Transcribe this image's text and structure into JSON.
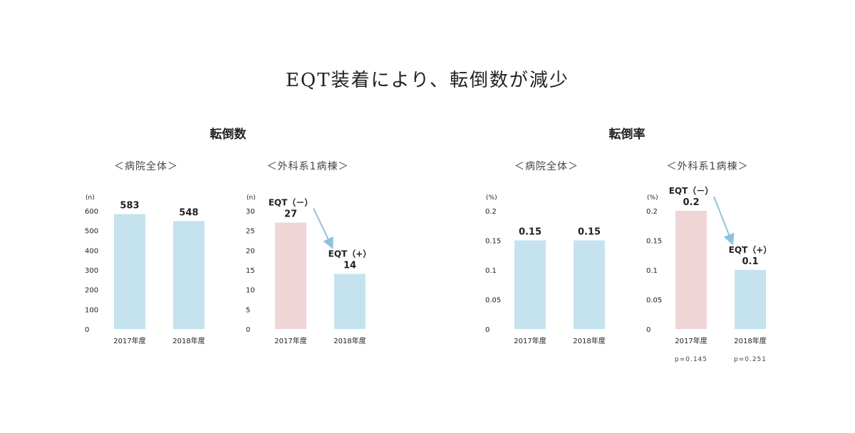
{
  "title": "EQT装着により、転倒数が減少",
  "sections": [
    {
      "title": "転倒数"
    },
    {
      "title": "転倒率"
    }
  ],
  "chart_data": [
    {
      "type": "bar",
      "subtitle": "＜病院全体＞",
      "unit": "(n)",
      "ylim": [
        0,
        600
      ],
      "yticks": [
        "600",
        "500",
        "400",
        "300",
        "200",
        "100",
        "0"
      ],
      "categories": [
        "2017年度",
        "2018年度"
      ],
      "values": [
        583,
        548
      ],
      "value_labels": [
        "583",
        "548"
      ],
      "colors": [
        "#c5e3ee",
        "#c5e3ee"
      ]
    },
    {
      "type": "bar",
      "subtitle": "＜外科系1病棟＞",
      "unit": "(n)",
      "ylim": [
        0,
        30
      ],
      "yticks": [
        "30",
        "25",
        "20",
        "15",
        "10",
        "5",
        "0"
      ],
      "categories": [
        "2017年度",
        "2018年度"
      ],
      "values": [
        27,
        14
      ],
      "value_labels": [
        "27",
        "14"
      ],
      "bar_annotations": [
        "EQT（－）",
        "EQT（+）"
      ],
      "colors": [
        "#f0d5d7",
        "#c5e3ee"
      ],
      "arrow_color": "#8fc3dc"
    },
    {
      "type": "bar",
      "subtitle": "＜病院全体＞",
      "unit": "(%)",
      "ylim": [
        0,
        0.2
      ],
      "yticks": [
        "0.2",
        "0.15",
        "0.1",
        "0.05",
        "0"
      ],
      "categories": [
        "2017年度",
        "2018年度"
      ],
      "values": [
        0.15,
        0.15
      ],
      "value_labels": [
        "0.15",
        "0.15"
      ],
      "colors": [
        "#c5e3ee",
        "#c5e3ee"
      ]
    },
    {
      "type": "bar",
      "subtitle": "＜外科系1病棟＞",
      "unit": "(%)",
      "ylim": [
        0,
        0.2
      ],
      "yticks": [
        "0.2",
        "0.15",
        "0.1",
        "0.05",
        "0"
      ],
      "categories": [
        "2017年度",
        "2018年度"
      ],
      "values": [
        0.2,
        0.1
      ],
      "value_labels": [
        "0.2",
        "0.1"
      ],
      "bar_annotations": [
        "EQT（－）",
        "EQT（+）"
      ],
      "pvalues": [
        "p=0.145",
        "p=0.251"
      ],
      "colors": [
        "#f0d5d7",
        "#c5e3ee"
      ],
      "arrow_color": "#8fc3dc"
    }
  ]
}
